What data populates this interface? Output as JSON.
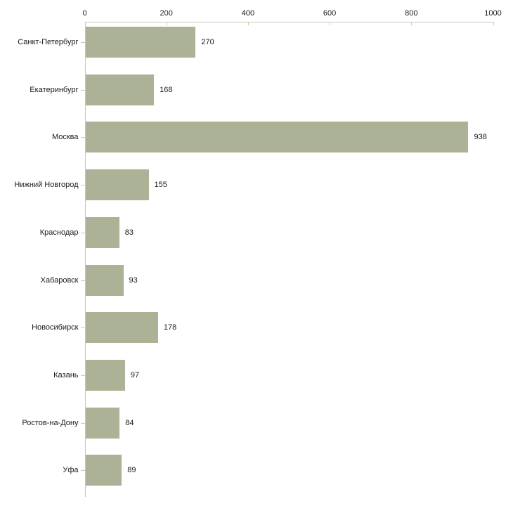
{
  "chart_data": {
    "type": "bar",
    "orientation": "horizontal",
    "title": "",
    "xlabel": "",
    "ylabel": "",
    "categories": [
      "Санкт-Петербург",
      "Екатеринбург",
      "Москва",
      "Нижний Новгород",
      "Краснодар",
      "Хабаровск",
      "Новосибирск",
      "Казань",
      "Ростов-на-Дону",
      "Уфа"
    ],
    "values": [
      270,
      168,
      938,
      155,
      83,
      93,
      178,
      97,
      84,
      89
    ],
    "value_labels": [
      "270",
      "168",
      "938",
      "155",
      "83",
      "93",
      "178",
      "97",
      "84",
      "89"
    ],
    "xlim": [
      0,
      1000
    ],
    "xticks": [
      0,
      200,
      400,
      600,
      800,
      1000
    ],
    "xtick_labels": [
      "0",
      "200",
      "400",
      "600",
      "800",
      "1000"
    ],
    "x_axis_position": "top",
    "grid": false,
    "legend": null,
    "colors": {
      "bar_fill": "#acb295",
      "x_axis_line": "#c8ccb4",
      "y_axis_line": "#c6c6c6",
      "category_tick": "#c6c6c6",
      "text": "#1a1a1a",
      "background": "#ffffff"
    }
  }
}
